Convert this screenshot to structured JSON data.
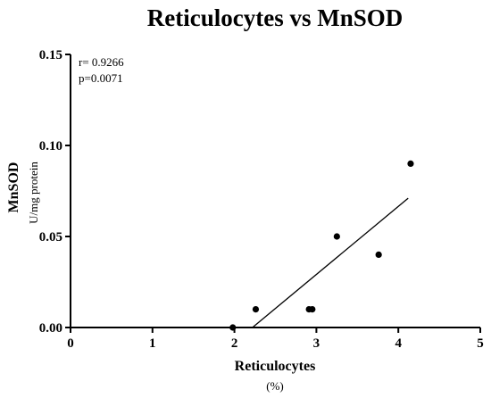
{
  "chart_data": {
    "type": "scatter",
    "title": "Reticulocytes vs MnSOD",
    "xlabel": "Reticulocytes",
    "xunit": "(%)",
    "ylabel": "MnSOD",
    "yunit": "U/mg protein",
    "xlim": [
      0,
      5
    ],
    "ylim": [
      0,
      0.15
    ],
    "xticks": [
      "0",
      "1",
      "2",
      "3",
      "4",
      "5"
    ],
    "yticks": [
      "0.00",
      "0.05",
      "0.10",
      "0.15"
    ],
    "xtick_values": [
      0,
      1,
      2,
      3,
      4,
      5
    ],
    "ytick_values": [
      0,
      0.05,
      0.1,
      0.15
    ],
    "points": [
      {
        "x": 1.98,
        "y": 0.0
      },
      {
        "x": 2.26,
        "y": 0.01
      },
      {
        "x": 2.91,
        "y": 0.01
      },
      {
        "x": 2.95,
        "y": 0.01
      },
      {
        "x": 3.25,
        "y": 0.05
      },
      {
        "x": 3.76,
        "y": 0.04
      },
      {
        "x": 4.15,
        "y": 0.09
      }
    ],
    "fit_line": {
      "x": [
        2.22,
        4.12
      ],
      "y": [
        0.0,
        0.071
      ]
    },
    "annotations": [
      "r= 0.9266",
      "p=0.0071"
    ],
    "grid": false,
    "colors": {
      "points": "#000000",
      "line": "#000000",
      "axes": "#000000"
    }
  }
}
